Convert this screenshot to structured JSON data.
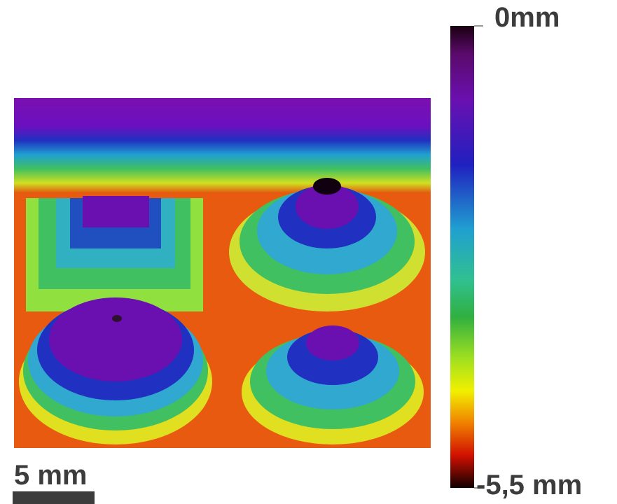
{
  "colorbar": {
    "top_label": "0mm",
    "bottom_label": "-5,5 mm"
  },
  "scale_bar": {
    "label": "5 mm"
  }
}
